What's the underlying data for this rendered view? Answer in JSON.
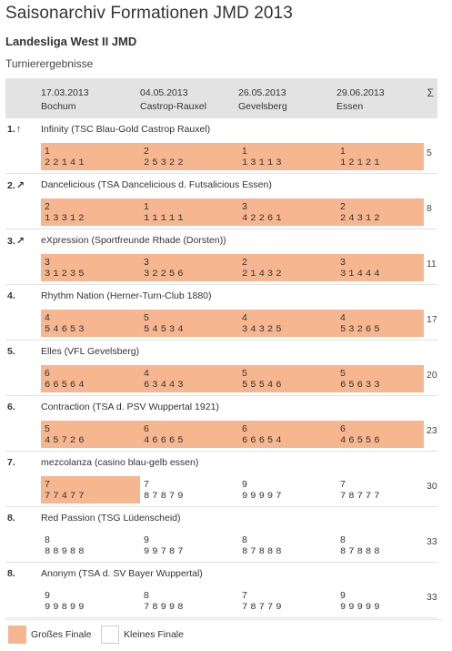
{
  "page": {
    "title": "Saisonarchiv Formationen JMD 2013",
    "subtitle": "Landesliga West II JMD",
    "section": "Turnierergebnisse"
  },
  "colors": {
    "grosses_finale": "#f5b690",
    "header_bg": "#e3e3e3"
  },
  "header": {
    "tournaments": [
      {
        "date": "17.03.2013",
        "location": "Bochum"
      },
      {
        "date": "04.05.2013",
        "location": "Castrop-Rauxel"
      },
      {
        "date": "26.05.2013",
        "location": "Gevelsberg"
      },
      {
        "date": "29.06.2013",
        "location": "Essen"
      }
    ],
    "sum_symbol": "Σ"
  },
  "teams": [
    {
      "rank": "1.",
      "trend": "↑",
      "name": "Infinity (TSC Blau-Gold Castrop Rauxel)",
      "sum": "5",
      "results": [
        {
          "place": "1",
          "marks": "22141",
          "final": "gross"
        },
        {
          "place": "2",
          "marks": "25322",
          "final": "gross"
        },
        {
          "place": "1",
          "marks": "13113",
          "final": "gross"
        },
        {
          "place": "1",
          "marks": "12121",
          "final": "gross"
        }
      ]
    },
    {
      "rank": "2.",
      "trend": "↗",
      "name": "Dancelicious (TSA Dancelicious d. Futsalicious Essen)",
      "sum": "8",
      "results": [
        {
          "place": "2",
          "marks": "13312",
          "final": "gross"
        },
        {
          "place": "1",
          "marks": "11111",
          "final": "gross"
        },
        {
          "place": "3",
          "marks": "42261",
          "final": "gross"
        },
        {
          "place": "2",
          "marks": "24312",
          "final": "gross"
        }
      ]
    },
    {
      "rank": "3.",
      "trend": "↗",
      "name": "eXpression (Sportfreunde Rhade (Dorsten))",
      "sum": "11",
      "results": [
        {
          "place": "3",
          "marks": "31235",
          "final": "gross"
        },
        {
          "place": "3",
          "marks": "32256",
          "final": "gross"
        },
        {
          "place": "2",
          "marks": "21432",
          "final": "gross"
        },
        {
          "place": "3",
          "marks": "31444",
          "final": "gross"
        }
      ]
    },
    {
      "rank": "4.",
      "trend": "",
      "name": "Rhythm Nation (Herner-Turn-Club 1880)",
      "sum": "17",
      "results": [
        {
          "place": "4",
          "marks": "54653",
          "final": "gross"
        },
        {
          "place": "5",
          "marks": "54534",
          "final": "gross"
        },
        {
          "place": "4",
          "marks": "34325",
          "final": "gross"
        },
        {
          "place": "4",
          "marks": "53265",
          "final": "gross"
        }
      ]
    },
    {
      "rank": "5.",
      "trend": "",
      "name": "Elles (VFL Gevelsberg)",
      "sum": "20",
      "results": [
        {
          "place": "6",
          "marks": "66564",
          "final": "gross"
        },
        {
          "place": "4",
          "marks": "63443",
          "final": "gross"
        },
        {
          "place": "5",
          "marks": "55546",
          "final": "gross"
        },
        {
          "place": "5",
          "marks": "65633",
          "final": "gross"
        }
      ]
    },
    {
      "rank": "6.",
      "trend": "",
      "name": "Contraction (TSA d. PSV Wuppertal 1921)",
      "sum": "23",
      "results": [
        {
          "place": "5",
          "marks": "45726",
          "final": "gross"
        },
        {
          "place": "6",
          "marks": "46665",
          "final": "gross"
        },
        {
          "place": "6",
          "marks": "66654",
          "final": "gross"
        },
        {
          "place": "6",
          "marks": "46556",
          "final": "gross"
        }
      ]
    },
    {
      "rank": "7.",
      "trend": "",
      "name": "mezcolanza (casino blau-gelb essen)",
      "sum": "30",
      "results": [
        {
          "place": "7",
          "marks": "77477",
          "final": "gross"
        },
        {
          "place": "7",
          "marks": "87879",
          "final": "klein"
        },
        {
          "place": "9",
          "marks": "99997",
          "final": "klein"
        },
        {
          "place": "7",
          "marks": "78777",
          "final": "klein"
        }
      ]
    },
    {
      "rank": "8.",
      "trend": "",
      "name": "Red Passion (TSG Lüdenscheid)",
      "sum": "33",
      "results": [
        {
          "place": "8",
          "marks": "88988",
          "final": "klein"
        },
        {
          "place": "9",
          "marks": "99787",
          "final": "klein"
        },
        {
          "place": "8",
          "marks": "87888",
          "final": "klein"
        },
        {
          "place": "8",
          "marks": "87888",
          "final": "klein"
        }
      ]
    },
    {
      "rank": "8.",
      "trend": "",
      "name": "Anonym (TSA d. SV Bayer Wuppertal)",
      "sum": "33",
      "results": [
        {
          "place": "9",
          "marks": "99899",
          "final": "klein"
        },
        {
          "place": "8",
          "marks": "78998",
          "final": "klein"
        },
        {
          "place": "7",
          "marks": "78779",
          "final": "klein"
        },
        {
          "place": "9",
          "marks": "99999",
          "final": "klein"
        }
      ]
    }
  ],
  "legend": {
    "grosses_finale": "Großes Finale",
    "kleines_finale": "Kleines Finale"
  }
}
